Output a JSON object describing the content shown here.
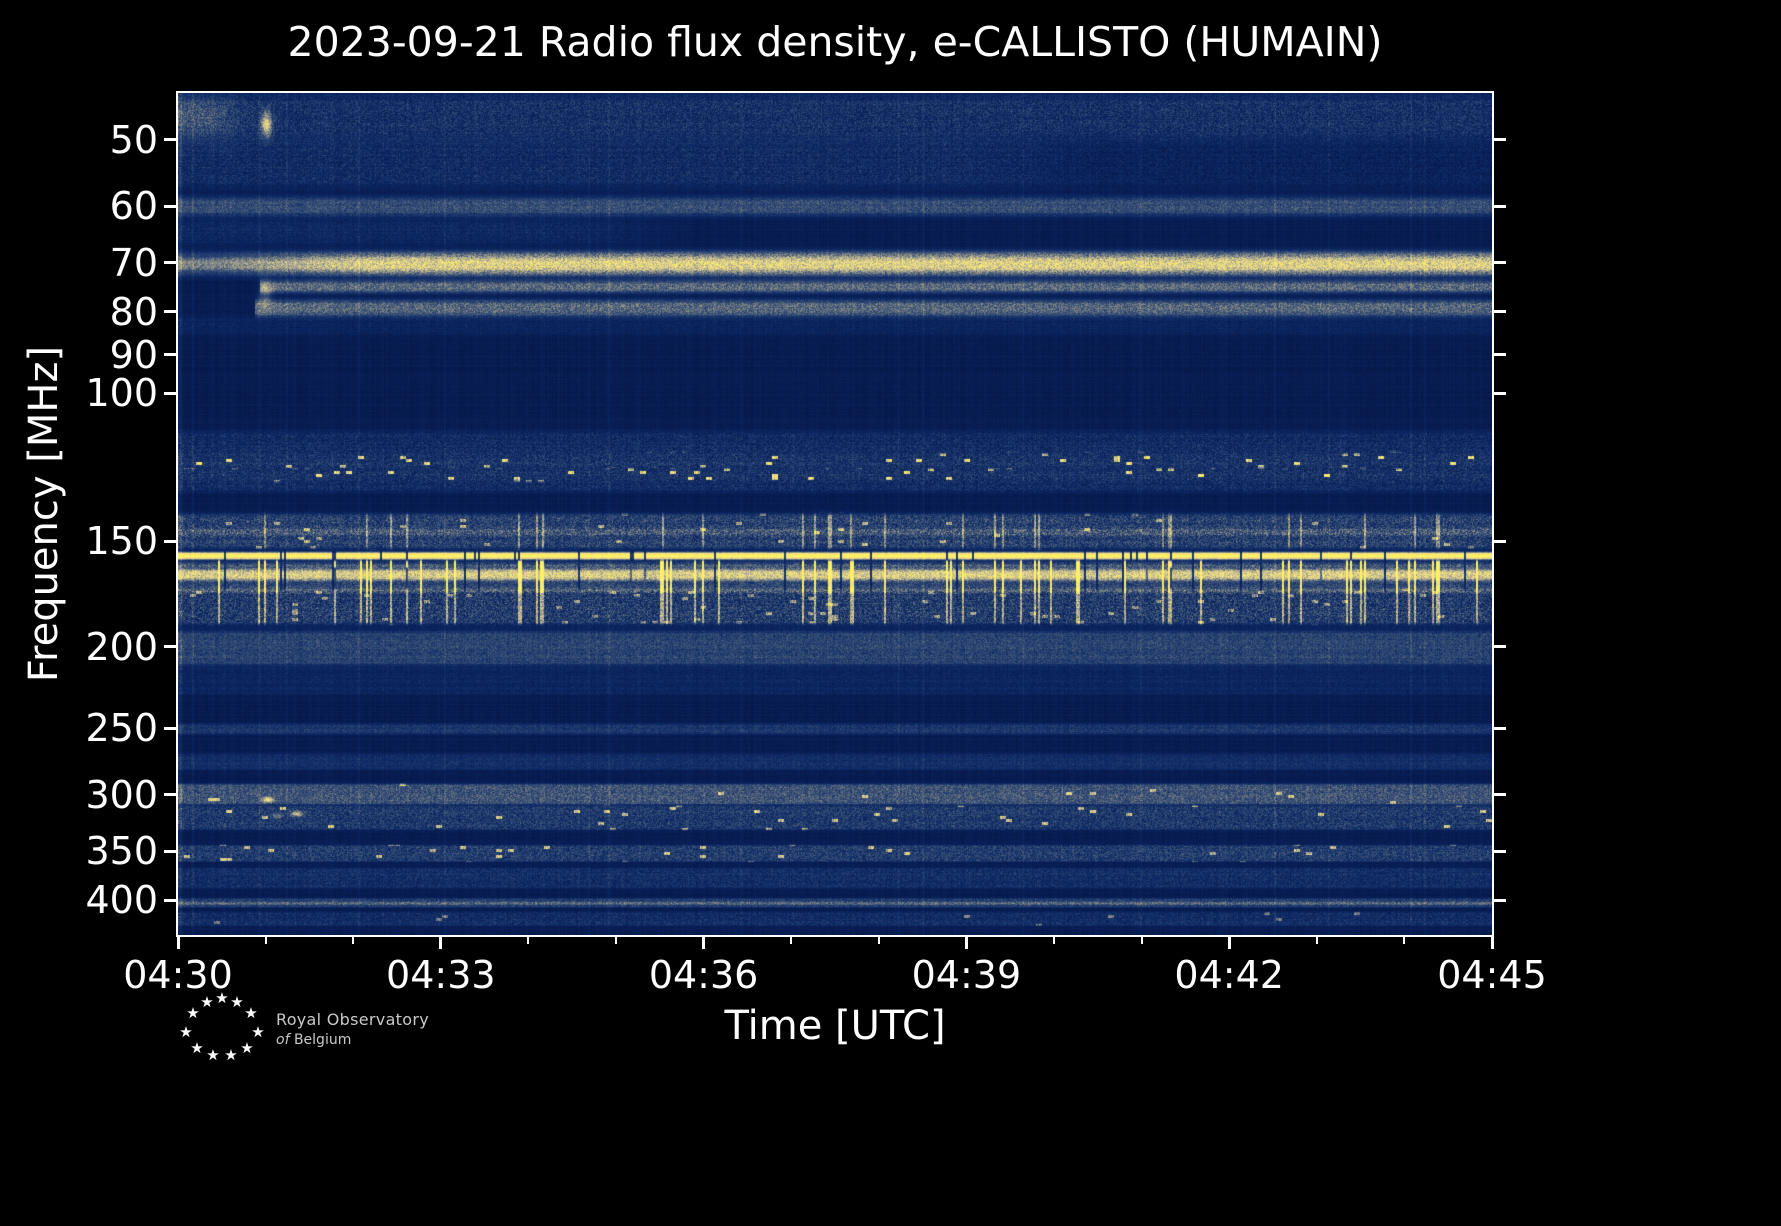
{
  "title": "2023-09-21 Radio flux density, e-CALLISTO (HUMAIN)",
  "xlabel": "Time [UTC]",
  "ylabel": "Frequency [MHz]",
  "logo": {
    "line1": "Royal Observatory",
    "line2_prefix": "of",
    "line2": "Belgium",
    "stars": [
      [
        -29,
        -17
      ],
      [
        -15,
        -28
      ],
      [
        0,
        -32
      ],
      [
        15,
        -28
      ],
      [
        29,
        -17
      ],
      [
        -36,
        2
      ],
      [
        36,
        2
      ],
      [
        -25,
        18
      ],
      [
        -9,
        25
      ],
      [
        9,
        25
      ],
      [
        25,
        18
      ]
    ]
  },
  "chart_data": {
    "type": "heatmap",
    "title": "2023-09-21 Radio flux density, e-CALLISTO (HUMAIN)",
    "xlabel": "Time [UTC]",
    "ylabel": "Frequency [MHz]",
    "date": "2023-09-21",
    "station": "HUMAIN",
    "x_ticks": [
      "04:30",
      "04:33",
      "04:36",
      "04:39",
      "04:42",
      "04:45"
    ],
    "x_minor_count": 15,
    "y_ticks": [
      50,
      60,
      70,
      80,
      90,
      100,
      150,
      200,
      250,
      300,
      350,
      400
    ],
    "freq_range": [
      44,
      440
    ],
    "y_scale": "log",
    "y_increases_downward": true,
    "grid": false,
    "base_value": 0.08,
    "colormap_stops": [
      [
        0.0,
        [
          5,
          21,
          70
        ]
      ],
      [
        0.22,
        [
          14,
          42,
          102
        ]
      ],
      [
        0.42,
        [
          60,
          83,
          119
        ]
      ],
      [
        0.58,
        [
          138,
          141,
          134
        ]
      ],
      [
        0.72,
        [
          190,
          183,
          147
        ]
      ],
      [
        0.85,
        [
          234,
          217,
          138
        ]
      ],
      [
        1.0,
        [
          255,
          240,
          102
        ]
      ]
    ],
    "bands": [
      {
        "f1": 44,
        "f2": 50,
        "v": 0.16,
        "n": 0.14
      },
      {
        "f1": 50,
        "f2": 57,
        "v": 0.06,
        "n": 0.1
      },
      {
        "f1": 50,
        "f2": 57,
        "v": 0.07,
        "n": 0.06,
        "t2": 0.6
      },
      {
        "f1": 58.5,
        "f2": 61.5,
        "v": 0.3,
        "n": 0.1
      },
      {
        "f1": 62,
        "f2": 66.5,
        "v": 0.11,
        "n": 0.08,
        "t2": 0.3
      },
      {
        "f1": 68,
        "f2": 72.5,
        "v": 0.58,
        "n": 0.16,
        "ramp": {
          "t0": 0.03,
          "t1": 0.15,
          "v0": 0.55
        }
      },
      {
        "f1": 69.3,
        "f2": 71.3,
        "v": 0.16,
        "n": 0.08
      },
      {
        "f1": 73.5,
        "f2": 76,
        "v": 0.4,
        "n": 0.12,
        "step_t": 0.062
      },
      {
        "f1": 77.5,
        "f2": 81,
        "v": 0.38,
        "n": 0.12,
        "step_t": 0.058
      },
      {
        "f1": 81,
        "f2": 85,
        "v": 0.08,
        "n": 0.06
      },
      {
        "f1": 111,
        "f2": 131,
        "v": 0.13,
        "n": 0.12
      },
      {
        "f1": 118,
        "f2": 122.5,
        "v": 0.05,
        "n": 0.06,
        "sp": 0.035,
        "sv": 0.8
      },
      {
        "f1": 123,
        "f2": 127,
        "v": 0.05,
        "n": 0.06,
        "sp": 0.03,
        "sv": 0.85
      },
      {
        "f1": 139,
        "f2": 153,
        "v": 0.24,
        "n": 0.16,
        "sp": 0.012,
        "sv": 0.45,
        "vs_p": 0.05,
        "vs_v": 0.3,
        "vs_seed": 42
      },
      {
        "f1": 145,
        "f2": 147.5,
        "v": 0.12,
        "n": 0.08
      },
      {
        "f1": 154.5,
        "f2": 157.5,
        "v": 0.92,
        "n": 0.08,
        "gap_p": 0.05,
        "gap_seed": 77
      },
      {
        "f1": 158,
        "f2": 161,
        "v": 0.08,
        "n": 0.08,
        "vs_p": 0.1,
        "vs_v": 0.6,
        "vs_seed": 42
      },
      {
        "f1": 159,
        "f2": 172,
        "v": 0.28,
        "n": 0.12,
        "vs_p": 0.1,
        "vs_v": 0.6,
        "vs_seed": 42,
        "gap_p": 0.03,
        "gap_seed": 77
      },
      {
        "f1": 162,
        "f2": 166.5,
        "v": 0.45,
        "n": 0.12,
        "gap_p": 0.04,
        "gap_seed": 77
      },
      {
        "f1": 171,
        "f2": 188,
        "v": 0.22,
        "n": 0.18,
        "sp": 0.02,
        "sv": 0.4,
        "vs_p": 0.1,
        "vs_v": 0.4,
        "vs_seed": 42
      },
      {
        "f1": 188,
        "f2": 192,
        "v": 0.08,
        "n": 0.06
      },
      {
        "f1": 192,
        "f2": 210,
        "v": 0.26,
        "n": 0.1
      },
      {
        "f1": 210,
        "f2": 228,
        "v": 0.09,
        "n": 0.06
      },
      {
        "f1": 247,
        "f2": 254,
        "v": 0.2,
        "n": 0.08
      },
      {
        "f1": 268,
        "f2": 280,
        "v": 0.15,
        "n": 0.06
      },
      {
        "f1": 291,
        "f2": 308,
        "v": 0.33,
        "n": 0.12,
        "sp": 0.01,
        "sv": 0.5
      },
      {
        "f1": 309,
        "f2": 330,
        "v": 0.21,
        "n": 0.14,
        "sp": 0.022,
        "sv": 0.6
      },
      {
        "f1": 344,
        "f2": 360,
        "v": 0.22,
        "n": 0.14,
        "sp": 0.02,
        "sv": 0.55
      },
      {
        "f1": 366,
        "f2": 387,
        "v": 0.15,
        "n": 0.1
      },
      {
        "f1": 398,
        "f2": 408,
        "v": 0.24,
        "n": 0.1
      },
      {
        "f1": 402,
        "f2": 405,
        "v": 0.16,
        "n": 0.06
      },
      {
        "f1": 413,
        "f2": 429,
        "v": 0.14,
        "n": 0.1,
        "sp": 0.008,
        "sv": 0.4
      }
    ],
    "blobs": [
      {
        "t": 0.015,
        "f": 47,
        "v": 0.2,
        "st": 0.03,
        "sf": 3.0
      },
      {
        "t": 0.067,
        "f": 48,
        "v": 0.6,
        "st": 0.004,
        "sf": 1.6
      },
      {
        "t": 0.066,
        "f": 76.5,
        "v": 0.28,
        "st": 0.005,
        "sf": 3.0
      },
      {
        "t": 0.068,
        "f": 304,
        "v": 0.55,
        "st": 0.004,
        "sf": 2.0
      },
      {
        "t": 0.09,
        "f": 316,
        "v": 0.45,
        "st": 0.005,
        "sf": 2.5
      },
      {
        "t": 0.075,
        "f": 318,
        "v": 0.3,
        "st": 0.004,
        "sf": 2.0
      }
    ]
  }
}
